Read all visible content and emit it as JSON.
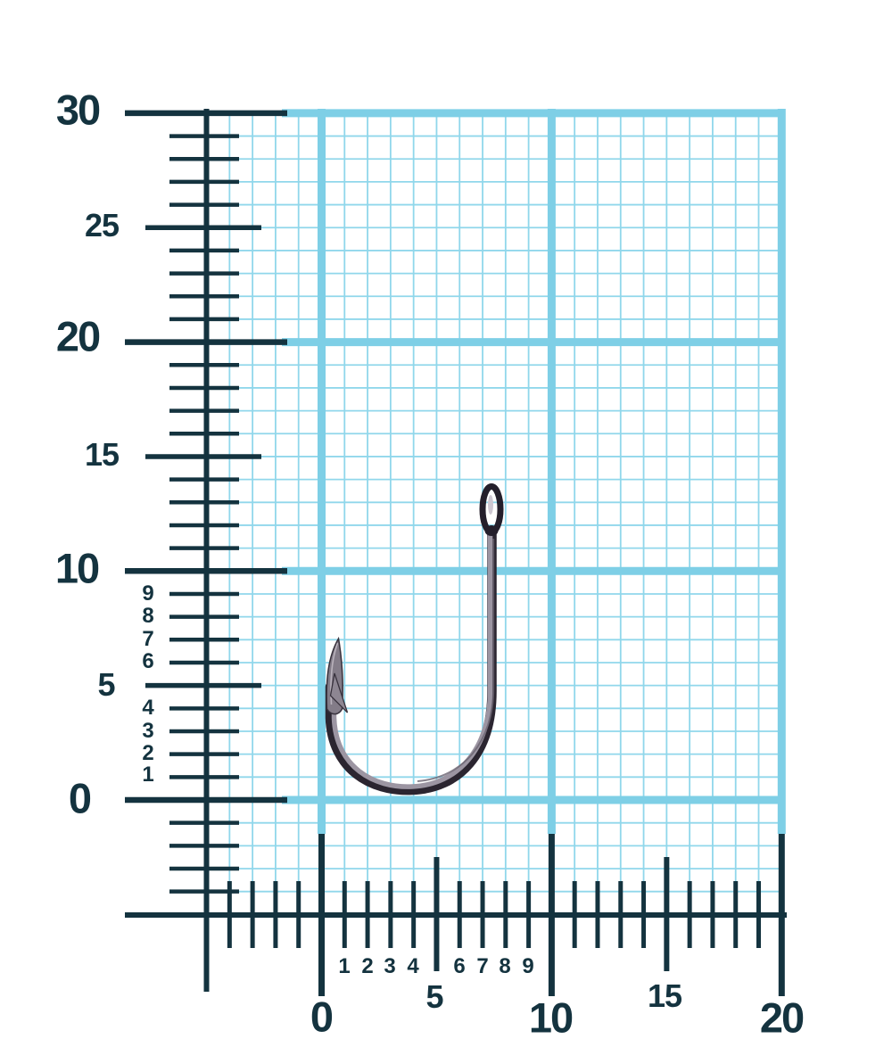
{
  "figure": {
    "subject": "fishing-hook",
    "background": "millimeter graph paper with rulers",
    "hook_span_vertical_units": "about 0.5 to 13.5",
    "hook_span_horizontal_units": "about 0.5 to 7.8"
  },
  "colors": {
    "ink": "#14333f",
    "grid_thin": "#90d7eb",
    "grid_thick": "#7ecfe6",
    "paper": "#ffffff",
    "hook_dark": "#2b2530",
    "hook_mid": "#6a6370",
    "hook_light": "#9c95a2",
    "hook_eye_highlight": "#cdc7d1"
  },
  "vruler": {
    "l30": "30",
    "l25": "25",
    "l20": "20",
    "l15": "15",
    "l10": "10",
    "l5": "5",
    "l0": "0",
    "s9": "9",
    "s8": "8",
    "s7": "7",
    "s6": "6",
    "s4": "4",
    "s3": "3",
    "s2": "2",
    "s1": "1"
  },
  "hruler": {
    "l0": "0",
    "l5": "5",
    "l10": "10",
    "l15": "15",
    "l20": "20",
    "s1": "1",
    "s2": "2",
    "s3": "3",
    "s4": "4",
    "s6": "6",
    "s7": "7",
    "s8": "8",
    "s9": "9"
  },
  "scale": {
    "x_axis_labeled_values": [
      0,
      5,
      10,
      15,
      20
    ],
    "y_axis_labeled_values": [
      0,
      5,
      10,
      15,
      20,
      25,
      30
    ],
    "minor_tick_step": 1
  }
}
